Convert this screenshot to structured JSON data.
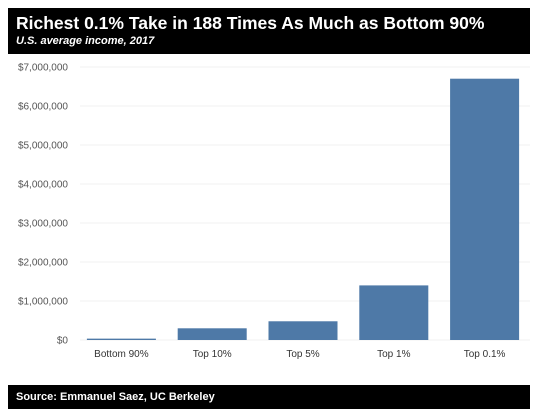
{
  "header": {
    "title": "Richest 0.1% Take in 188 Times As Much as Bottom 90%",
    "subtitle": "U.S. average income, 2017"
  },
  "footer": {
    "source": "Source: Emmanuel Saez, UC Berkeley"
  },
  "colors": {
    "bar": "#4e79a7",
    "header_bg": "#000000",
    "header_text": "#ffffff"
  },
  "chart_data": {
    "type": "bar",
    "title": "Richest 0.1% Take in 188 Times As Much as Bottom 90%",
    "subtitle": "U.S. average income, 2017",
    "categories": [
      "Bottom 90%",
      "Top 10%",
      "Top 5%",
      "Top 1%",
      "Top 0.1%"
    ],
    "values": [
      35000,
      300000,
      480000,
      1400000,
      6700000
    ],
    "ylim": [
      0,
      7000000
    ],
    "yticks": [
      0,
      1000000,
      2000000,
      3000000,
      4000000,
      5000000,
      6000000,
      7000000
    ],
    "ytick_labels": [
      "$0",
      "$1,000,000",
      "$2,000,000",
      "$3,000,000",
      "$4,000,000",
      "$5,000,000",
      "$6,000,000",
      "$7,000,000"
    ],
    "xlabel": "",
    "ylabel": "",
    "grid": true,
    "legend": "none"
  }
}
